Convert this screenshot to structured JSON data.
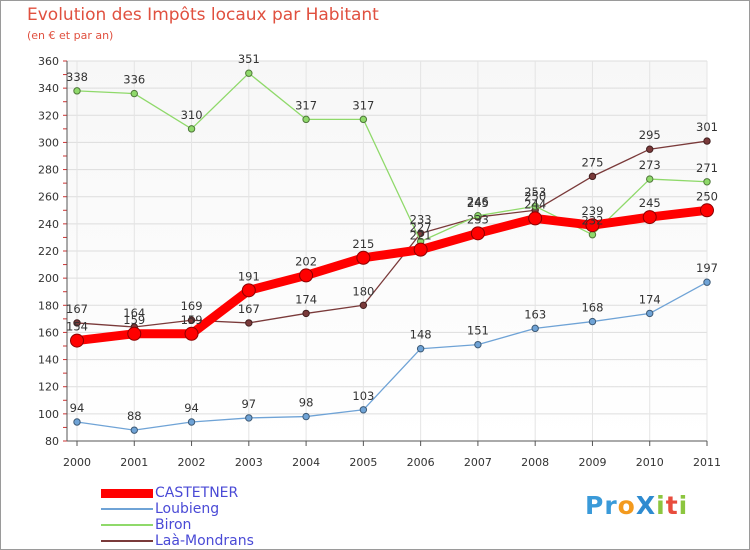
{
  "title": "Evolution des Impôts locaux par Habitant",
  "subtitle": "(en € et par an)",
  "logo": {
    "text": "ProXiti",
    "letters": [
      {
        "ch": "P",
        "color": "#3a9ad9"
      },
      {
        "ch": "r",
        "color": "#3a9ad9"
      },
      {
        "ch": "o",
        "color": "#f39a1e"
      },
      {
        "ch": "X",
        "color": "#2e8bd0"
      },
      {
        "ch": "i",
        "color": "#8cc63f"
      },
      {
        "ch": "t",
        "color": "#e84c3d"
      },
      {
        "ch": "i",
        "color": "#8cc63f"
      }
    ]
  },
  "chart_data": {
    "type": "line",
    "title": "Evolution des Impôts locaux par Habitant",
    "subtitle": "(en € et par an)",
    "x": [
      "2000",
      "2001",
      "2002",
      "2003",
      "2004",
      "2005",
      "2006",
      "2007",
      "2008",
      "2009",
      "2010",
      "2011"
    ],
    "ylim": [
      80,
      360
    ],
    "yticks": [
      80,
      100,
      120,
      140,
      160,
      180,
      200,
      220,
      240,
      260,
      280,
      300,
      320,
      340,
      360
    ],
    "grid": true,
    "legend_position": "bottom-left",
    "series": [
      {
        "name": "CASTETNER",
        "color": "#ff0000",
        "values": [
          154,
          159,
          159,
          191,
          202,
          215,
          221,
          233,
          244,
          239,
          245,
          250
        ]
      },
      {
        "name": "Loubieng",
        "color": "#6fa3d6",
        "values": [
          94,
          88,
          94,
          97,
          98,
          103,
          148,
          151,
          163,
          168,
          174,
          197
        ]
      },
      {
        "name": "Biron",
        "color": "#8fd96a",
        "values": [
          338,
          336,
          310,
          351,
          317,
          317,
          227,
          246,
          253,
          232,
          273,
          271
        ]
      },
      {
        "name": "Laà-Mondrans",
        "color": "#7a3a3a",
        "values": [
          167,
          164,
          169,
          167,
          174,
          180,
          233,
          245,
          250,
          275,
          295,
          301
        ]
      }
    ]
  }
}
